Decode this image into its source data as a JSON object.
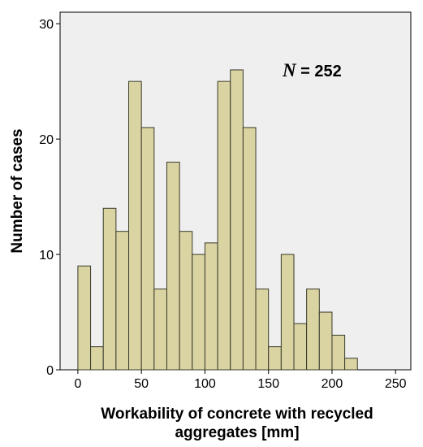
{
  "chart_data": {
    "type": "bar",
    "subtype": "histogram",
    "bin_width": 10,
    "bin_starts": [
      0,
      10,
      20,
      30,
      40,
      50,
      60,
      70,
      80,
      90,
      100,
      110,
      120,
      130,
      140,
      150,
      160,
      170,
      180,
      190,
      200,
      210
    ],
    "values": [
      9,
      2,
      14,
      12,
      25,
      21,
      7,
      18,
      12,
      10,
      11,
      25,
      26,
      21,
      7,
      2,
      10,
      4,
      7,
      5,
      3,
      1
    ],
    "title": "",
    "xlabel_line1": "Workability of concrete with recycled",
    "xlabel_line2": "aggregates [mm]",
    "ylabel": "Number of cases",
    "xlim": [
      -14,
      262
    ],
    "ylim": [
      0,
      31
    ],
    "xticks": [
      0,
      50,
      100,
      150,
      200,
      250
    ],
    "yticks": [
      0,
      10,
      20,
      30
    ],
    "grid": false,
    "annotation": {
      "symbol": "N",
      "text": " = 252"
    },
    "colors": {
      "bar_fill": "#d9d4a2",
      "bar_stroke": "#3a3a2a",
      "plot_background": "#efefef",
      "axis": "#000000"
    }
  }
}
